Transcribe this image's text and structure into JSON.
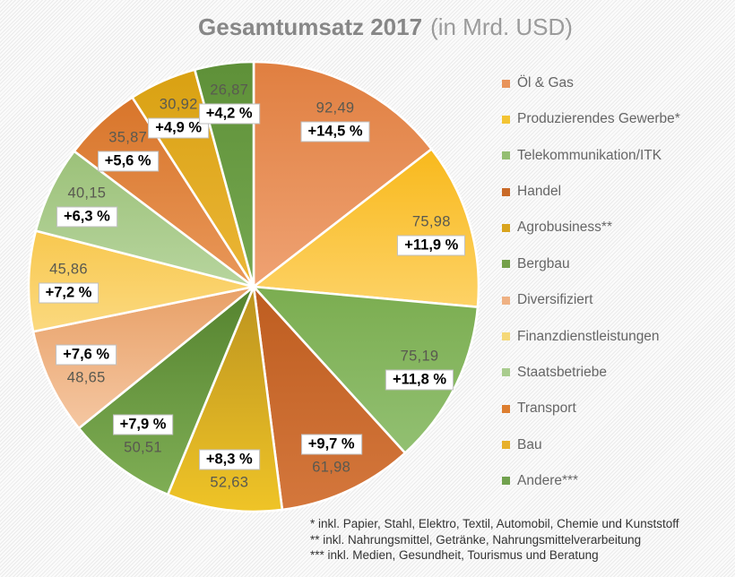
{
  "title": {
    "bold": "Gesamtumsatz 2017",
    "suffix": "(in Mrd. USD)"
  },
  "chart_data": {
    "type": "pie",
    "title": "Gesamtumsatz 2017 (in Mrd. USD)",
    "unit": "Mrd. USD",
    "start_angle_deg": 0,
    "direction": "clockwise",
    "legend_position": "right",
    "slices": [
      {
        "label": "Öl & Gas",
        "value": 92.49,
        "value_label": "92,49",
        "pct_label": "+14,5 %",
        "color_top": "#E07F40",
        "color_bottom": "#EFA273",
        "legend_color": "#E8935A"
      },
      {
        "label": "Produzierendes Gewerbe*",
        "value": 75.98,
        "value_label": "75,98",
        "pct_label": "+11,9 %",
        "color_top": "#F8B91C",
        "color_bottom": "#FDD266",
        "legend_color": "#F3C433"
      },
      {
        "label": "Telekommunikation/ITK",
        "value": 75.19,
        "value_label": "75,19",
        "pct_label": "+11,8 %",
        "color_top": "#7BAD50",
        "color_bottom": "#92C072",
        "legend_color": "#94BE72"
      },
      {
        "label": "Handel",
        "value": 61.98,
        "value_label": "61,98",
        "pct_label": "+9,7 %",
        "color_top": "#BE5D20",
        "color_bottom": "#D4773C",
        "legend_color": "#C96A28"
      },
      {
        "label": "Agrobusiness**",
        "value": 52.63,
        "value_label": "52,63",
        "pct_label": "+8,3 %",
        "color_top": "#BC931F",
        "color_bottom": "#EFC427",
        "legend_color": "#D9A41E"
      },
      {
        "label": "Bergbau",
        "value": 50.51,
        "value_label": "50,51",
        "pct_label": "+7,9 %",
        "color_top": "#55832F",
        "color_bottom": "#7FAE55",
        "legend_color": "#74A04A"
      },
      {
        "label": "Diversifiziert",
        "value": 48.65,
        "value_label": "48,65",
        "pct_label": "+7,6 %",
        "color_top": "#E8A067",
        "color_bottom": "#F5C7A2",
        "legend_color": "#EFB183"
      },
      {
        "label": "Finanzdienstleistungen",
        "value": 45.86,
        "value_label": "45,86",
        "pct_label": "+7,2 %",
        "color_top": "#F8C84F",
        "color_bottom": "#FBD97F",
        "legend_color": "#F5D878"
      },
      {
        "label": "Staatsbetriebe",
        "value": 40.15,
        "value_label": "40,15",
        "pct_label": "+6,3 %",
        "color_top": "#9CC179",
        "color_bottom": "#B7D59E",
        "legend_color": "#A9CC8E"
      },
      {
        "label": "Transport",
        "value": 35.87,
        "value_label": "35,87",
        "pct_label": "+5,6 %",
        "color_top": "#D8752A",
        "color_bottom": "#E9985A",
        "legend_color": "#DD7E30"
      },
      {
        "label": "Bau",
        "value": 30.92,
        "value_label": "30,92",
        "pct_label": "+4,9 %",
        "color_top": "#D9A112",
        "color_bottom": "#EBB637",
        "legend_color": "#E7B02B"
      },
      {
        "label": "Andere***",
        "value": 26.87,
        "value_label": "26,87",
        "pct_label": "+4,2 %",
        "color_top": "#5E9038",
        "color_bottom": "#76A851",
        "legend_color": "#71A14E"
      }
    ]
  },
  "footnotes": [
    "* inkl. Papier, Stahl, Elektro, Textil, Automobil, Chemie und Kunststoff",
    "** inkl. Nahrungsmittel, Getränke, Nahrungsmittelverarbeitung",
    "*** inkl. Medien, Gesundheit, Tourismus und Beratung"
  ]
}
